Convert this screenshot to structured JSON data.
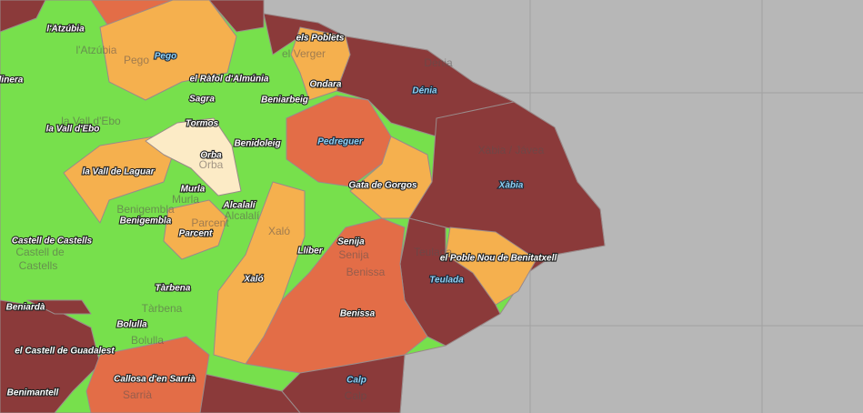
{
  "place_labels": [
    "l'Atzúbia",
    "els Poblets",
    "linera",
    "el Ràfol d'Almúnia",
    "Ondara",
    "Sagra",
    "Beniarbeig",
    "Tormos",
    "la Vall d'Ebo",
    "Benidoleig",
    "Orba",
    "la Vall de Laguar",
    "Gata de Gorgos",
    "Murla",
    "Alcalalí",
    "Benigembla",
    "Parcent",
    "Castell de Castells",
    "Senija",
    "Llíber",
    "el Poble Nou de Benitatxell",
    "Xaló",
    "Tàrbena",
    "Beniardà",
    "Benissa",
    "Bolulla",
    "el Castell de Guadalest",
    "Callosa d'en Sarrià",
    "Benimantell"
  ],
  "city_labels": [
    "Pego",
    "Dénia",
    "Pedreguer",
    "Xàbia",
    "Teulada",
    "Calp"
  ],
  "base_labels": [
    "l'Atzúbia",
    "Pego",
    "el Verger",
    "Dénia",
    "Xàbia / Jávea",
    "la Vall d'Ebo",
    "Orba",
    "Murla",
    "Benigembla",
    "Parcent",
    "Alcalalí",
    "Castell de",
    "Castells",
    "Tàrbena",
    "Bolulla",
    "Sarrià",
    "Calp",
    "Benissa",
    "Teulada",
    "Senija",
    "Xaló"
  ]
}
